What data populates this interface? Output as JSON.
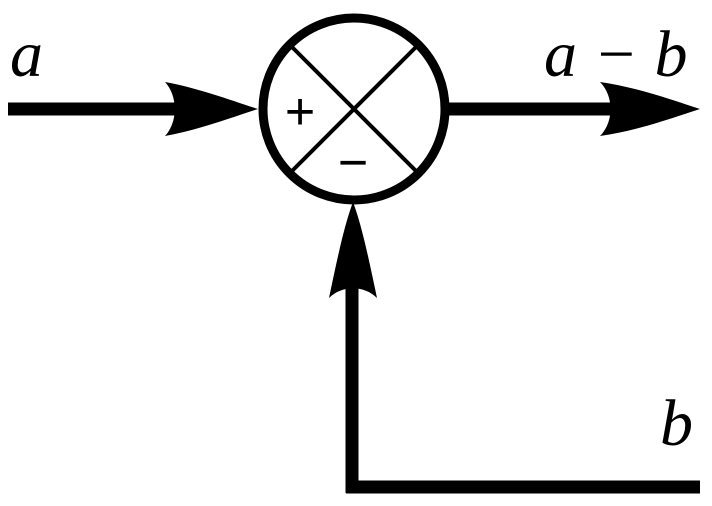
{
  "labels": {
    "input_a": "a",
    "output": "a − b",
    "input_b": "b",
    "plus_sign": "+",
    "minus_sign": "−"
  },
  "colors": {
    "stroke": "#000000",
    "background": "#ffffff"
  }
}
